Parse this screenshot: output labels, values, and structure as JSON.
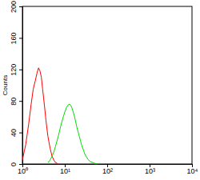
{
  "chart_data": {
    "type": "line",
    "log": "x",
    "y_label": "Counts",
    "x": [
      1,
      1.2,
      1.4,
      1.6,
      1.8,
      2,
      2.2,
      2.4,
      2.6,
      2.8,
      3,
      3.3,
      3.6,
      4,
      4.5,
      5,
      5.5,
      6,
      7,
      8,
      9,
      10,
      11,
      12,
      13,
      14,
      15,
      17,
      19,
      22,
      25,
      30,
      35,
      40,
      50,
      60
    ],
    "series": [
      {
        "color": "#ff0000",
        "values": [
          5,
          25,
          50,
          75,
          95,
          105,
          115,
          122,
          118,
          110,
          95,
          75,
          55,
          35,
          20,
          10,
          5,
          2,
          0,
          null,
          null,
          null,
          null,
          null,
          null,
          null,
          null,
          null,
          null,
          null,
          null,
          null,
          null,
          null,
          null,
          null
        ]
      },
      {
        "color": "#00dd00",
        "values": [
          null,
          null,
          null,
          null,
          null,
          null,
          null,
          null,
          null,
          null,
          null,
          null,
          null,
          2,
          5,
          10,
          15,
          22,
          35,
          48,
          58,
          66,
          72,
          75,
          76,
          74,
          70,
          60,
          48,
          35,
          24,
          12,
          6,
          3,
          1,
          0
        ]
      }
    ],
    "xlim": [
      1,
      10000
    ],
    "xticks": [
      {
        "value": 1,
        "label": "10⁰"
      },
      {
        "value": 10,
        "label": "10¹"
      },
      {
        "value": 100,
        "label": "10²"
      },
      {
        "value": 1000,
        "label": "10³"
      },
      {
        "value": 10000,
        "label": "10⁴"
      }
    ],
    "ylim": [
      0,
      200
    ],
    "yticks": [
      0,
      40,
      80,
      120,
      160,
      200
    ],
    "grid": false
  }
}
